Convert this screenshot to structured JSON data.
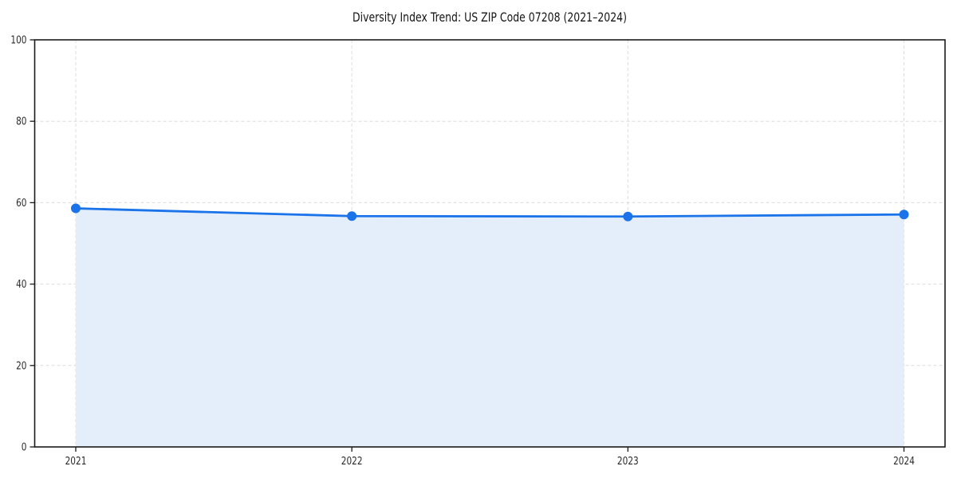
{
  "chart_data": {
    "type": "area",
    "title": "Diversity Index Trend: US ZIP Code 07208 (2021–2024)",
    "categories": [
      "2021",
      "2022",
      "2023",
      "2024"
    ],
    "series": [
      {
        "name": "Diversity Index",
        "values": [
          58.6,
          56.7,
          56.6,
          57.1
        ]
      }
    ],
    "xlabel": "",
    "ylabel": "",
    "ylim": [
      0,
      100
    ],
    "yticks": [
      0,
      20,
      40,
      60,
      80,
      100
    ],
    "grid": true,
    "grid_style": "dashed",
    "legend_position": "none",
    "line_color": "#1a73e8",
    "fill_color": "#e4eefb",
    "grid_color": "#dcdcdc",
    "spine_color": "#1a1a1a",
    "tick_label_color": "#2a2a2a",
    "marker": "circle"
  }
}
